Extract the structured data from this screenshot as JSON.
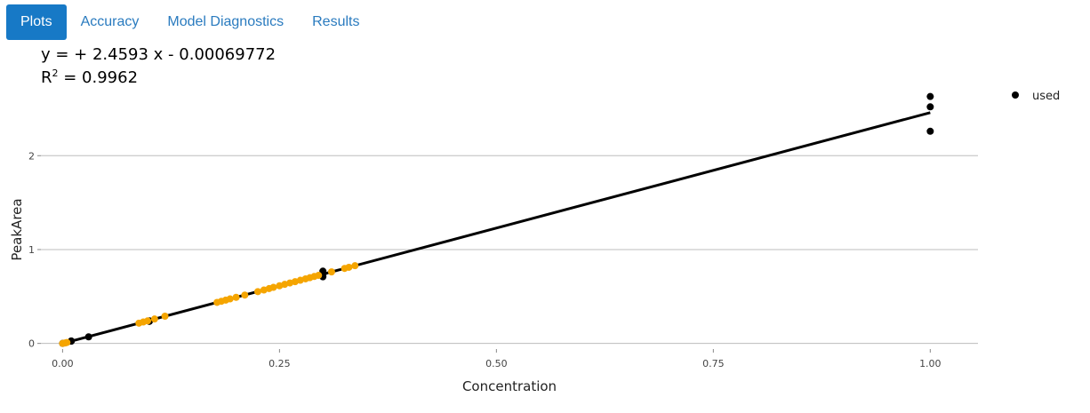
{
  "tabs": [
    {
      "label": "Plots",
      "active": true
    },
    {
      "label": "Accuracy",
      "active": false
    },
    {
      "label": "Model Diagnostics",
      "active": false
    },
    {
      "label": "Results",
      "active": false
    }
  ],
  "equation": {
    "line1": "y =  + 2.4593 x - 0.00069772",
    "r2_prefix": "R",
    "r2_sup": "2",
    "r2_value": " = 0.9962"
  },
  "colors": {
    "tab_active_bg": "#1779c6",
    "tab_text": "#2a7bbf",
    "used": "#000000",
    "excluded": "#f5a500",
    "fit_line": "#000000",
    "grid": "#bdbdbd"
  },
  "chart_data": {
    "type": "scatter",
    "xlabel": "Concentration",
    "ylabel": "PeakArea",
    "xlim": [
      -0.025,
      1.055
    ],
    "ylim": [
      -0.06,
      2.75
    ],
    "x_ticks": [
      0.0,
      0.25,
      0.5,
      0.75,
      1.0
    ],
    "x_tick_labels": [
      "0.00",
      "0.25",
      "0.50",
      "0.75",
      "1.00"
    ],
    "y_ticks": [
      0,
      1,
      2
    ],
    "y_tick_labels": [
      "0",
      "1",
      "2"
    ],
    "grid": "horizontal",
    "legend": {
      "position": "right",
      "entries": [
        "used"
      ]
    },
    "fit": {
      "slope": 2.4593,
      "intercept": -0.00069772,
      "x_range": [
        0,
        1.0
      ]
    },
    "series": [
      {
        "name": "used",
        "color": "#000000",
        "points": [
          [
            0.0,
            0.0
          ],
          [
            0.01,
            0.024
          ],
          [
            0.01,
            0.026
          ],
          [
            0.03,
            0.07
          ],
          [
            0.1,
            0.24
          ],
          [
            0.1,
            0.235
          ],
          [
            0.3,
            0.77
          ],
          [
            0.3,
            0.71
          ],
          [
            0.3,
            0.73
          ],
          [
            1.0,
            2.63
          ],
          [
            1.0,
            2.52
          ],
          [
            1.0,
            2.26
          ]
        ]
      },
      {
        "color": "#f5a500",
        "points": [
          [
            0.0,
            0.0
          ],
          [
            0.003,
            0.005
          ],
          [
            0.005,
            0.01
          ],
          [
            0.088,
            0.216
          ],
          [
            0.093,
            0.228
          ],
          [
            0.098,
            0.24
          ],
          [
            0.106,
            0.26
          ],
          [
            0.118,
            0.29
          ],
          [
            0.178,
            0.437
          ],
          [
            0.183,
            0.449
          ],
          [
            0.188,
            0.461
          ],
          [
            0.193,
            0.474
          ],
          [
            0.2,
            0.491
          ],
          [
            0.21,
            0.515
          ],
          [
            0.225,
            0.552
          ],
          [
            0.232,
            0.569
          ],
          [
            0.238,
            0.584
          ],
          [
            0.243,
            0.597
          ],
          [
            0.25,
            0.614
          ],
          [
            0.256,
            0.629
          ],
          [
            0.262,
            0.644
          ],
          [
            0.268,
            0.658
          ],
          [
            0.274,
            0.673
          ],
          [
            0.28,
            0.688
          ],
          [
            0.285,
            0.7
          ],
          [
            0.29,
            0.713
          ],
          [
            0.295,
            0.725
          ],
          [
            0.31,
            0.762
          ],
          [
            0.325,
            0.799
          ],
          [
            0.33,
            0.811
          ],
          [
            0.337,
            0.828
          ]
        ]
      }
    ]
  }
}
